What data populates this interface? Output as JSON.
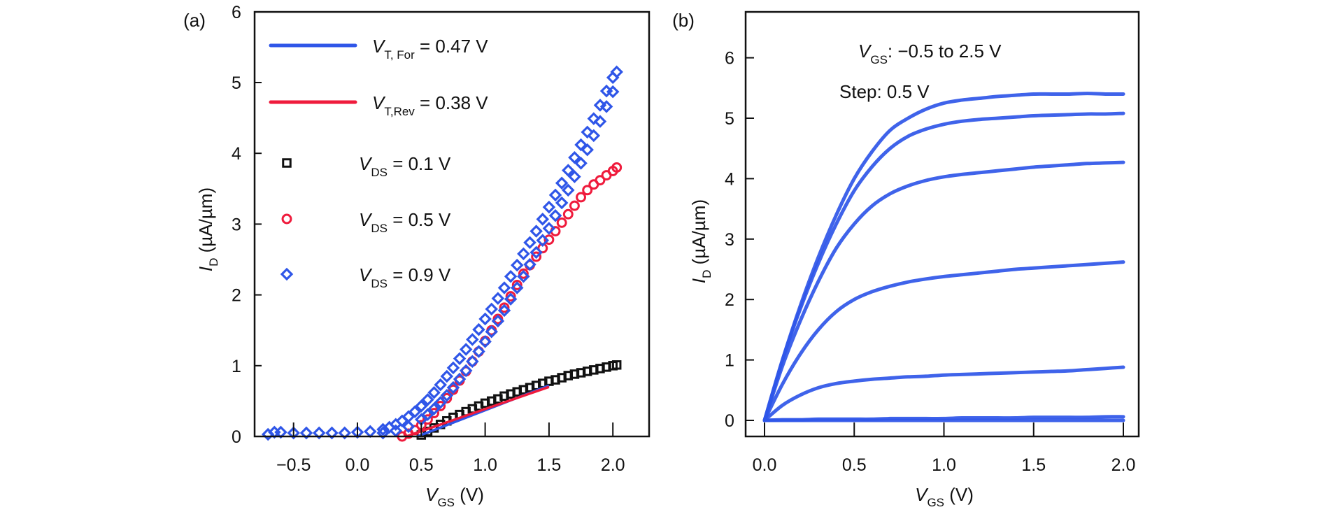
{
  "figure": {
    "panels": [
      "(a)",
      "(b)"
    ]
  },
  "chart_data": [
    {
      "id": "a",
      "type": "scatter",
      "panel_label": "(a)",
      "title": "",
      "xlabel": {
        "main": "V",
        "sub": "GS",
        "unit": " (V)"
      },
      "ylabel": {
        "main": "I",
        "sub": "D",
        "unit": " (µA/µm)"
      },
      "xlim": [
        -0.8,
        2.3
      ],
      "ylim": [
        0,
        6
      ],
      "xticks": [
        -0.5,
        0.0,
        0.5,
        1.0,
        1.5,
        2.0
      ],
      "xtick_labels": [
        "−0.5",
        "0.0",
        "0.5",
        "1.0",
        "1.5",
        "2.0"
      ],
      "yticks": [
        0,
        1,
        2,
        3,
        4,
        5,
        6
      ],
      "ytick_labels": [
        "0",
        "1",
        "2",
        "3",
        "4",
        "5",
        "6"
      ],
      "grid": false,
      "legend_position": "top-left",
      "legend": [
        {
          "kind": "line",
          "color": "#2f56e8",
          "main": "V",
          "sub": "T, For",
          "rest": " = 0.47 V"
        },
        {
          "kind": "line",
          "color": "#ef1b3c",
          "main": "V",
          "sub": "T,Rev",
          "rest": " = 0.38 V"
        },
        {
          "kind": "square",
          "color": "#111111",
          "main": "V",
          "sub": "DS",
          "rest": " = 0.1 V"
        },
        {
          "kind": "circle",
          "color": "#ef1b3c",
          "main": "V",
          "sub": "DS",
          "rest": " = 0.5 V"
        },
        {
          "kind": "diamond",
          "color": "#2f56e8",
          "main": "V",
          "sub": "DS",
          "rest": " = 0.9 V"
        }
      ],
      "series": [
        {
          "name": "VDS = 0.9 V (forward sweep)",
          "marker": "diamond",
          "color": "#2f56e8",
          "x": [
            -0.7,
            -0.65,
            -0.6,
            -0.5,
            -0.4,
            -0.3,
            -0.2,
            -0.1,
            0.0,
            0.1,
            0.2,
            0.25,
            0.3,
            0.35,
            0.4,
            0.45,
            0.5,
            0.55,
            0.6,
            0.65,
            0.7,
            0.75,
            0.8,
            0.85,
            0.9,
            0.95,
            1.0,
            1.05,
            1.1,
            1.15,
            1.2,
            1.25,
            1.3,
            1.35,
            1.4,
            1.45,
            1.5,
            1.55,
            1.6,
            1.65,
            1.7,
            1.75,
            1.8,
            1.85,
            1.9,
            1.95,
            2.0,
            2.03
          ],
          "y": [
            0.03,
            0.06,
            0.06,
            0.05,
            0.05,
            0.05,
            0.05,
            0.05,
            0.06,
            0.07,
            0.1,
            0.13,
            0.17,
            0.22,
            0.28,
            0.35,
            0.43,
            0.52,
            0.62,
            0.73,
            0.85,
            0.97,
            1.1,
            1.23,
            1.37,
            1.51,
            1.66,
            1.8,
            1.95,
            2.1,
            2.26,
            2.42,
            2.58,
            2.74,
            2.9,
            3.07,
            3.24,
            3.41,
            3.58,
            3.76,
            3.94,
            4.12,
            4.3,
            4.49,
            4.68,
            4.88,
            5.07,
            5.15
          ]
        },
        {
          "name": "VDS = 0.9 V (reverse sweep)",
          "marker": "diamond",
          "color": "#2f56e8",
          "x": [
            0.2,
            0.3,
            0.4,
            0.5,
            0.55,
            0.6,
            0.65,
            0.7,
            0.75,
            0.8,
            0.85,
            0.9,
            0.95,
            1.0,
            1.05,
            1.1,
            1.15,
            1.2,
            1.25,
            1.3,
            1.35,
            1.4,
            1.45,
            1.5,
            1.55,
            1.6,
            1.65,
            1.7,
            1.75,
            1.8,
            1.85,
            1.9,
            1.95,
            2.0
          ],
          "y": [
            0.05,
            0.08,
            0.14,
            0.24,
            0.31,
            0.39,
            0.48,
            0.58,
            0.69,
            0.81,
            0.93,
            1.06,
            1.2,
            1.34,
            1.48,
            1.63,
            1.78,
            1.94,
            2.1,
            2.26,
            2.43,
            2.6,
            2.77,
            2.94,
            3.12,
            3.3,
            3.48,
            3.67,
            3.86,
            4.05,
            4.25,
            4.45,
            4.66,
            4.87
          ]
        },
        {
          "name": "VDS = 0.5 V",
          "marker": "circle",
          "color": "#ef1b3c",
          "x": [
            0.35,
            0.4,
            0.45,
            0.5,
            0.55,
            0.6,
            0.65,
            0.7,
            0.75,
            0.8,
            0.85,
            0.9,
            0.95,
            1.0,
            1.05,
            1.1,
            1.15,
            1.2,
            1.25,
            1.3,
            1.35,
            1.4,
            1.45,
            1.5,
            1.55,
            1.6,
            1.65,
            1.7,
            1.75,
            1.8,
            1.85,
            1.9,
            1.95,
            2.0,
            2.03
          ],
          "y": [
            0.0,
            0.04,
            0.09,
            0.16,
            0.24,
            0.33,
            0.43,
            0.54,
            0.66,
            0.79,
            0.92,
            1.06,
            1.2,
            1.35,
            1.5,
            1.66,
            1.82,
            1.98,
            2.14,
            2.3,
            2.42,
            2.54,
            2.66,
            2.78,
            2.9,
            3.02,
            3.14,
            3.26,
            3.38,
            3.48,
            3.56,
            3.62,
            3.69,
            3.75,
            3.8
          ]
        },
        {
          "name": "VDS = 0.1 V",
          "marker": "square",
          "color": "#111111",
          "x": [
            0.5,
            0.55,
            0.6,
            0.65,
            0.7,
            0.75,
            0.8,
            0.85,
            0.9,
            0.95,
            1.0,
            1.05,
            1.1,
            1.15,
            1.2,
            1.25,
            1.3,
            1.35,
            1.4,
            1.45,
            1.5,
            1.55,
            1.6,
            1.65,
            1.7,
            1.75,
            1.8,
            1.85,
            1.9,
            1.95,
            2.0,
            2.03
          ],
          "y": [
            0.02,
            0.07,
            0.12,
            0.17,
            0.22,
            0.27,
            0.31,
            0.35,
            0.39,
            0.43,
            0.47,
            0.5,
            0.53,
            0.57,
            0.6,
            0.63,
            0.66,
            0.69,
            0.72,
            0.75,
            0.78,
            0.8,
            0.83,
            0.86,
            0.88,
            0.9,
            0.92,
            0.94,
            0.96,
            0.98,
            1.0,
            1.01
          ]
        }
      ],
      "fit_lines": [
        {
          "name": "VT,For fit",
          "color": "#2f56e8",
          "x": [
            0.47,
            1.5
          ],
          "y": [
            0.0,
            0.72
          ]
        },
        {
          "name": "VT,Rev fit",
          "color": "#ef1b3c",
          "x": [
            0.38,
            1.5
          ],
          "y": [
            0.0,
            0.7
          ]
        }
      ]
    },
    {
      "id": "b",
      "type": "line",
      "panel_label": "(b)",
      "title": "",
      "xlabel": {
        "main": "V",
        "sub": "GS",
        "unit": " (V)"
      },
      "ylabel": {
        "main": "I",
        "sub": "D",
        "unit": " (µA/µm)"
      },
      "xlim": [
        -0.1,
        2.1
      ],
      "ylim": [
        -0.27,
        6.8
      ],
      "xticks": [
        0.0,
        0.5,
        1.0,
        1.5,
        2.0
      ],
      "xtick_labels": [
        "0.0",
        "0.5",
        "1.0",
        "1.5",
        "2.0"
      ],
      "yticks": [
        0,
        1,
        2,
        3,
        4,
        5,
        6
      ],
      "ytick_labels": [
        "0",
        "1",
        "2",
        "3",
        "4",
        "5",
        "6"
      ],
      "grid": false,
      "annotations": [
        {
          "main": "V",
          "sub": "GS",
          "rest": ": −0.5 to 2.5 V"
        },
        {
          "main": "",
          "sub": "",
          "rest": "Step: 0.5 V"
        }
      ],
      "x": [
        0.0,
        0.1,
        0.2,
        0.3,
        0.4,
        0.5,
        0.6,
        0.7,
        0.8,
        0.9,
        1.0,
        1.1,
        1.2,
        1.3,
        1.4,
        1.5,
        1.6,
        1.7,
        1.8,
        1.9,
        2.0
      ],
      "series": [
        {
          "name": "VGS = 2.5 V",
          "color": "#2f56e8",
          "y": [
            0.0,
            1.0,
            1.9,
            2.7,
            3.4,
            4.0,
            4.45,
            4.8,
            5.0,
            5.15,
            5.25,
            5.3,
            5.33,
            5.36,
            5.38,
            5.4,
            5.4,
            5.4,
            5.41,
            5.4,
            5.4
          ]
        },
        {
          "name": "VGS = 2.0 V",
          "color": "#2f56e8",
          "y": [
            0.0,
            1.0,
            1.85,
            2.6,
            3.25,
            3.8,
            4.2,
            4.5,
            4.7,
            4.82,
            4.9,
            4.95,
            4.98,
            5.0,
            5.02,
            5.04,
            5.05,
            5.06,
            5.07,
            5.07,
            5.08
          ]
        },
        {
          "name": "VGS = 1.5 V",
          "color": "#2f56e8",
          "y": [
            0.0,
            0.9,
            1.65,
            2.3,
            2.85,
            3.25,
            3.55,
            3.75,
            3.88,
            3.97,
            4.03,
            4.07,
            4.1,
            4.13,
            4.16,
            4.19,
            4.21,
            4.23,
            4.25,
            4.26,
            4.27
          ]
        },
        {
          "name": "VGS = 1.0 V",
          "color": "#2f56e8",
          "y": [
            0.0,
            0.6,
            1.1,
            1.5,
            1.8,
            2.0,
            2.13,
            2.22,
            2.29,
            2.34,
            2.38,
            2.41,
            2.44,
            2.47,
            2.5,
            2.52,
            2.54,
            2.56,
            2.58,
            2.6,
            2.62
          ]
        },
        {
          "name": "VGS = 0.5 V",
          "color": "#2f56e8",
          "y": [
            0.0,
            0.25,
            0.42,
            0.54,
            0.61,
            0.65,
            0.68,
            0.7,
            0.72,
            0.73,
            0.75,
            0.76,
            0.77,
            0.78,
            0.79,
            0.8,
            0.81,
            0.82,
            0.84,
            0.86,
            0.88
          ]
        },
        {
          "name": "VGS = 0.0 V",
          "color": "#2f56e8",
          "y": [
            0.0,
            0.01,
            0.01,
            0.02,
            0.02,
            0.02,
            0.02,
            0.03,
            0.03,
            0.03,
            0.03,
            0.04,
            0.04,
            0.04,
            0.04,
            0.05,
            0.05,
            0.05,
            0.05,
            0.06,
            0.06
          ]
        },
        {
          "name": "VGS = -0.5 V",
          "color": "#2f56e8",
          "y": [
            0.0,
            0.0,
            0.0,
            0.0,
            0.0,
            0.0,
            0.0,
            0.0,
            0.0,
            0.0,
            0.0,
            0.0,
            0.0,
            0.0,
            0.0,
            0.0,
            0.0,
            0.0,
            0.0,
            0.0,
            0.0
          ]
        }
      ]
    }
  ]
}
